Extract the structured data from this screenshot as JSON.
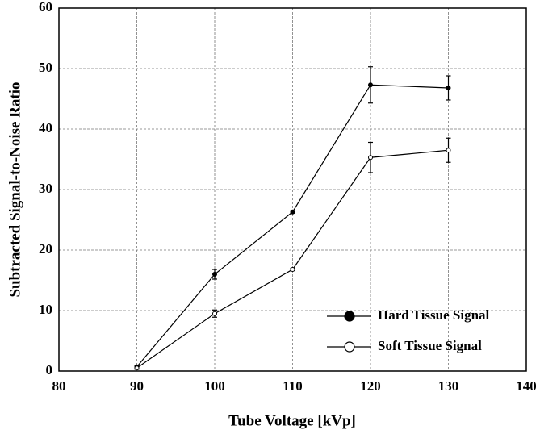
{
  "chart_data": {
    "type": "line",
    "xlabel": "Tube Voltage [kVp]",
    "ylabel": "Subtracted Signal-to-Noise Ratio",
    "x": [
      90,
      100,
      110,
      120,
      130
    ],
    "series": [
      {
        "name": "Hard Tissue Signal",
        "color": "#000000",
        "marker": "filled",
        "values": [
          0.7,
          16,
          26.3,
          47.3,
          46.8
        ],
        "errors": [
          0.2,
          0.8,
          0.2,
          3,
          2
        ]
      },
      {
        "name": "Soft Tissue Signal",
        "color": "#000000",
        "marker": "open",
        "values": [
          0.5,
          9.5,
          16.8,
          35.3,
          36.5
        ],
        "errors": [
          0.2,
          0.6,
          0.2,
          2.5,
          2
        ]
      }
    ],
    "xlim": [
      80,
      140
    ],
    "xticks": [
      80,
      90,
      100,
      110,
      120,
      130,
      140
    ],
    "ylim": [
      0,
      60
    ],
    "yticks": [
      0,
      10,
      20,
      30,
      40,
      50,
      60
    ],
    "grid": true,
    "legend": "lower right"
  }
}
